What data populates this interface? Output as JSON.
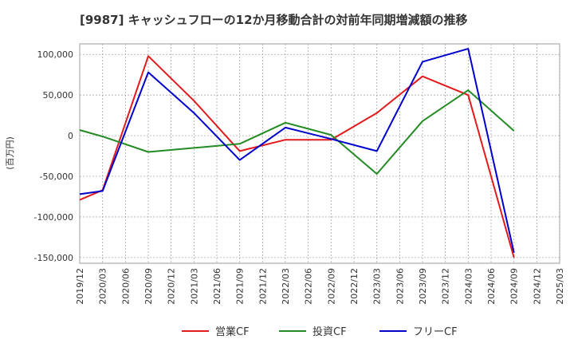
{
  "chart_data": {
    "type": "line",
    "title": "[9987]  キャッシュフローの12か月移動合計の対前年同期増減額の推移",
    "ylabel": "(百万円)",
    "xlabel": "",
    "x_ticks": [
      "2019/12",
      "2020/03",
      "2020/06",
      "2020/09",
      "2020/12",
      "2021/03",
      "2021/06",
      "2021/09",
      "2021/12",
      "2022/03",
      "2022/06",
      "2022/09",
      "2022/12",
      "2023/03",
      "2023/06",
      "2023/09",
      "2023/12",
      "2024/03",
      "2024/06",
      "2024/09",
      "2024/12",
      "2025/03"
    ],
    "y_ticks": [
      100000,
      50000,
      0,
      -50000,
      -100000,
      -150000
    ],
    "y_tick_labels": [
      "100,000",
      "50,000",
      "0",
      "-50,000",
      "-100,000",
      "-150,000"
    ],
    "ylim": [
      -157000,
      113000
    ],
    "grid": true,
    "legend_position": "bottom",
    "series": [
      {
        "name": "営業CF",
        "color": "#e31a1c",
        "points": [
          [
            "2019/12",
            -79000
          ],
          [
            "2020/03",
            -67000
          ],
          [
            "2020/09",
            98000
          ],
          [
            "2021/03",
            43000
          ],
          [
            "2021/09",
            -19000
          ],
          [
            "2022/03",
            -5000
          ],
          [
            "2022/09",
            -5000
          ],
          [
            "2023/03",
            28000
          ],
          [
            "2023/09",
            73000
          ],
          [
            "2024/03",
            50000
          ],
          [
            "2024/09",
            -150000
          ]
        ]
      },
      {
        "name": "投資CF",
        "color": "#238b23",
        "points": [
          [
            "2019/12",
            7000
          ],
          [
            "2020/03",
            -1000
          ],
          [
            "2020/09",
            -20000
          ],
          [
            "2021/03",
            -15000
          ],
          [
            "2021/09",
            -10000
          ],
          [
            "2022/03",
            16000
          ],
          [
            "2022/09",
            1000
          ],
          [
            "2023/03",
            -47000
          ],
          [
            "2023/09",
            18000
          ],
          [
            "2024/03",
            56000
          ],
          [
            "2024/09",
            6000
          ]
        ]
      },
      {
        "name": "フリーCF",
        "color": "#0000cc",
        "points": [
          [
            "2019/12",
            -72000
          ],
          [
            "2020/03",
            -68000
          ],
          [
            "2020/09",
            78000
          ],
          [
            "2021/03",
            28000
          ],
          [
            "2021/09",
            -30000
          ],
          [
            "2022/03",
            10000
          ],
          [
            "2022/09",
            -4000
          ],
          [
            "2023/03",
            -19000
          ],
          [
            "2023/09",
            91000
          ],
          [
            "2024/03",
            107000
          ],
          [
            "2024/09",
            -144000
          ]
        ]
      }
    ]
  }
}
